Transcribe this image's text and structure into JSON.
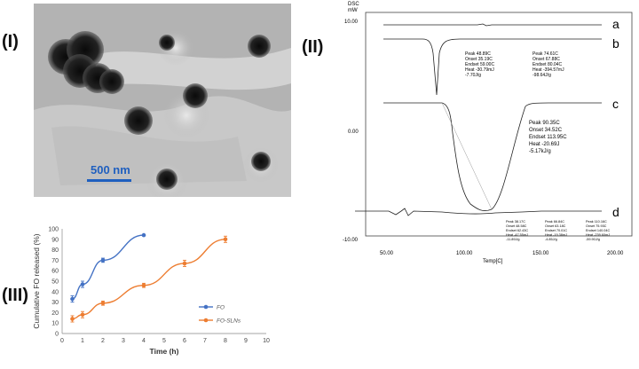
{
  "panels": {
    "tem_label": "(I)",
    "dsc_label": "(II)",
    "release_label": "(III)"
  },
  "tem": {
    "scale_text": "500 nm"
  },
  "dsc": {
    "ylabel_top": "DSC",
    "ylabel_unit": "mW",
    "yticks": [
      "10.00",
      "0.00",
      "-10.00"
    ],
    "xticks": [
      "50.00",
      "100.00",
      "150.00",
      "200.00"
    ],
    "xlabel": "Temp[C]",
    "curve_labels": [
      "a",
      "b",
      "c",
      "d"
    ],
    "b_box1": [
      "Peak    48.89C",
      "Onset   35.19C",
      "Endset  59.00C",
      "Heat    -30.79mJ",
      "            -7.70J/g"
    ],
    "b_box2": [
      "Peak    74.61C",
      "Onset   67.88C",
      "Endset  80.04C",
      "Heat    -394.57mJ",
      "             -98.64J/g"
    ],
    "c_box": [
      "Peak    90.35C",
      "Onset   34.52C",
      "Endset  113.95C",
      "Heat    -20.69J",
      "            -5.17kJ/g"
    ],
    "d_box1": [
      "Peak   38.17C",
      "Onset  48.58C",
      "Endset 62.43C",
      "Heat   -47.55mJ",
      "          -11.89J/g"
    ],
    "d_box2": [
      "Peak   66.84C",
      "Onset  63.18C",
      "Endset 70.01C",
      "Heat   -19.38mJ",
      "          -4.85J/g"
    ],
    "d_box3": [
      "Peak   110.16C",
      "Onset  75.93C",
      "Endset 140.04C",
      "Heat   -239.60mJ",
      "          -59.90J/g"
    ]
  },
  "chart_data": {
    "type": "line",
    "ylabel": "Cumulative FO released (%)",
    "xlabel": "Time (h)",
    "xlim": [
      0,
      10
    ],
    "ylim": [
      0,
      100
    ],
    "xticks": [
      0,
      1,
      2,
      3,
      4,
      5,
      6,
      7,
      8,
      9,
      10
    ],
    "yticks": [
      0,
      10,
      20,
      30,
      40,
      50,
      60,
      70,
      80,
      90,
      100
    ],
    "legend_position": "right",
    "series": [
      {
        "name": "FO",
        "color": "#4472c4",
        "x": [
          0.5,
          1,
          2,
          4
        ],
        "y": [
          33,
          47,
          70,
          94
        ],
        "err": [
          3,
          3,
          2,
          0
        ]
      },
      {
        "name": "FO-SLNs",
        "color": "#ed7d31",
        "x": [
          0.5,
          1,
          2,
          4,
          6,
          8
        ],
        "y": [
          14,
          18,
          29,
          46,
          67,
          90
        ],
        "err": [
          3,
          3,
          2,
          2,
          3,
          3
        ]
      }
    ]
  }
}
